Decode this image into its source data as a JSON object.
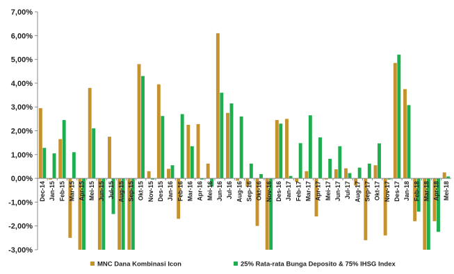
{
  "chart_data": {
    "type": "bar",
    "title": "",
    "xlabel": "",
    "ylabel": "",
    "ylim": [
      -3,
      7
    ],
    "yticks": [
      -3,
      -2,
      -1,
      0,
      1,
      2,
      3,
      4,
      5,
      6,
      7
    ],
    "ytick_labels": [
      "-3,00%",
      "-2,00%",
      "-1,00%",
      "0,00%",
      "1,00%",
      "2,00%",
      "3,00%",
      "4,00%",
      "5,00%",
      "6,00%",
      "7,00%"
    ],
    "grid": false,
    "legend_position": "bottom",
    "categories": [
      "Dec-14",
      "Jan-15",
      "Feb-15",
      "Mar-15",
      "Apr-15",
      "Mei-15",
      "Jun-15",
      "Jul-15",
      "Aug-15",
      "Sep-15",
      "Okt-15",
      "Nov-15",
      "Des-15",
      "Jan-16",
      "Feb-16",
      "Mar-16",
      "Apr-16",
      "Mei-16",
      "Jun-16",
      "Jul-16",
      "Aug-16",
      "Sep-16",
      "Okt-16",
      "Nov-16",
      "Des-16",
      "Jan-17",
      "Feb-17",
      "Mar-17",
      "Apr-17",
      "Mei-17",
      "Jun-17",
      "Jul-17",
      "Aug-17",
      "Sep-17",
      "Okt-17",
      "Nov-17",
      "Des-17",
      "Jan-18",
      "Feb-18",
      "Mar-18",
      "Apr-18",
      "Mei-18"
    ],
    "tick_labels": [
      "Dec-14",
      "Jan-15",
      "Feb-15",
      "Mar-15",
      "Apr-15",
      "Mei-15",
      "Jun-15",
      "Jul-15",
      "Aug-15",
      "Sep-15",
      "Okt-15",
      "Nov-15",
      "Des-15",
      "Jan-16",
      "Feb-16",
      "Mar-16",
      "Apr-16",
      "Mei-16",
      "Jun-16",
      "Jul-16",
      "Aug-16",
      "Sep-16",
      "Okt-16",
      "Nov-16",
      "Des-16",
      "Jan-17",
      "Feb-17",
      "Mar-17",
      "Apr-17",
      "Mei-17",
      "Jun-17",
      "Jul-17",
      "Aug-17",
      "Sep-17",
      "Okt-17",
      "Nov-17",
      "Des-17",
      "Jan-18",
      "Feb-18",
      "Mar-18",
      "Apr-18",
      "Mei-18"
    ],
    "series": [
      {
        "name": "MNC Dana Kombinasi Icon",
        "color": "#c5922e",
        "values": [
          2.95,
          -0.05,
          1.65,
          -2.5,
          -3.0,
          3.8,
          -3.0,
          1.75,
          -3.0,
          -3.0,
          4.8,
          0.3,
          3.95,
          0.4,
          -1.7,
          2.25,
          2.28,
          0.62,
          6.1,
          2.75,
          -0.1,
          -0.35,
          -2.0,
          -3.0,
          2.45,
          2.5,
          -0.15,
          0.3,
          -1.6,
          -0.05,
          0.38,
          0.42,
          -0.3,
          -2.6,
          0.55,
          -2.4,
          4.85,
          3.75,
          -1.8,
          -3.0,
          -1.8,
          0.25
        ]
      },
      {
        "name": "25% Rata-rata Bunga Deposito & 75% IHSG Index",
        "color": "#1fae4f",
        "values": [
          1.28,
          1.05,
          2.45,
          1.1,
          -3.0,
          2.1,
          -3.0,
          -1.5,
          -3.0,
          -3.0,
          4.3,
          -0.05,
          2.62,
          0.55,
          2.7,
          1.35,
          -0.05,
          -0.35,
          3.6,
          3.15,
          2.6,
          0.62,
          0.18,
          -3.0,
          2.3,
          0.1,
          1.48,
          2.65,
          1.72,
          0.82,
          1.35,
          0.22,
          0.45,
          0.62,
          1.47,
          -0.05,
          5.2,
          3.08,
          -1.4,
          -3.0,
          -2.25,
          0.08
        ]
      }
    ]
  },
  "legend": {
    "items": [
      {
        "label": "MNC Dana Kombinasi Icon",
        "color": "#c5922e"
      },
      {
        "label": "25% Rata-rata Bunga Deposito & 75% IHSG Index",
        "color": "#1fae4f"
      }
    ]
  }
}
